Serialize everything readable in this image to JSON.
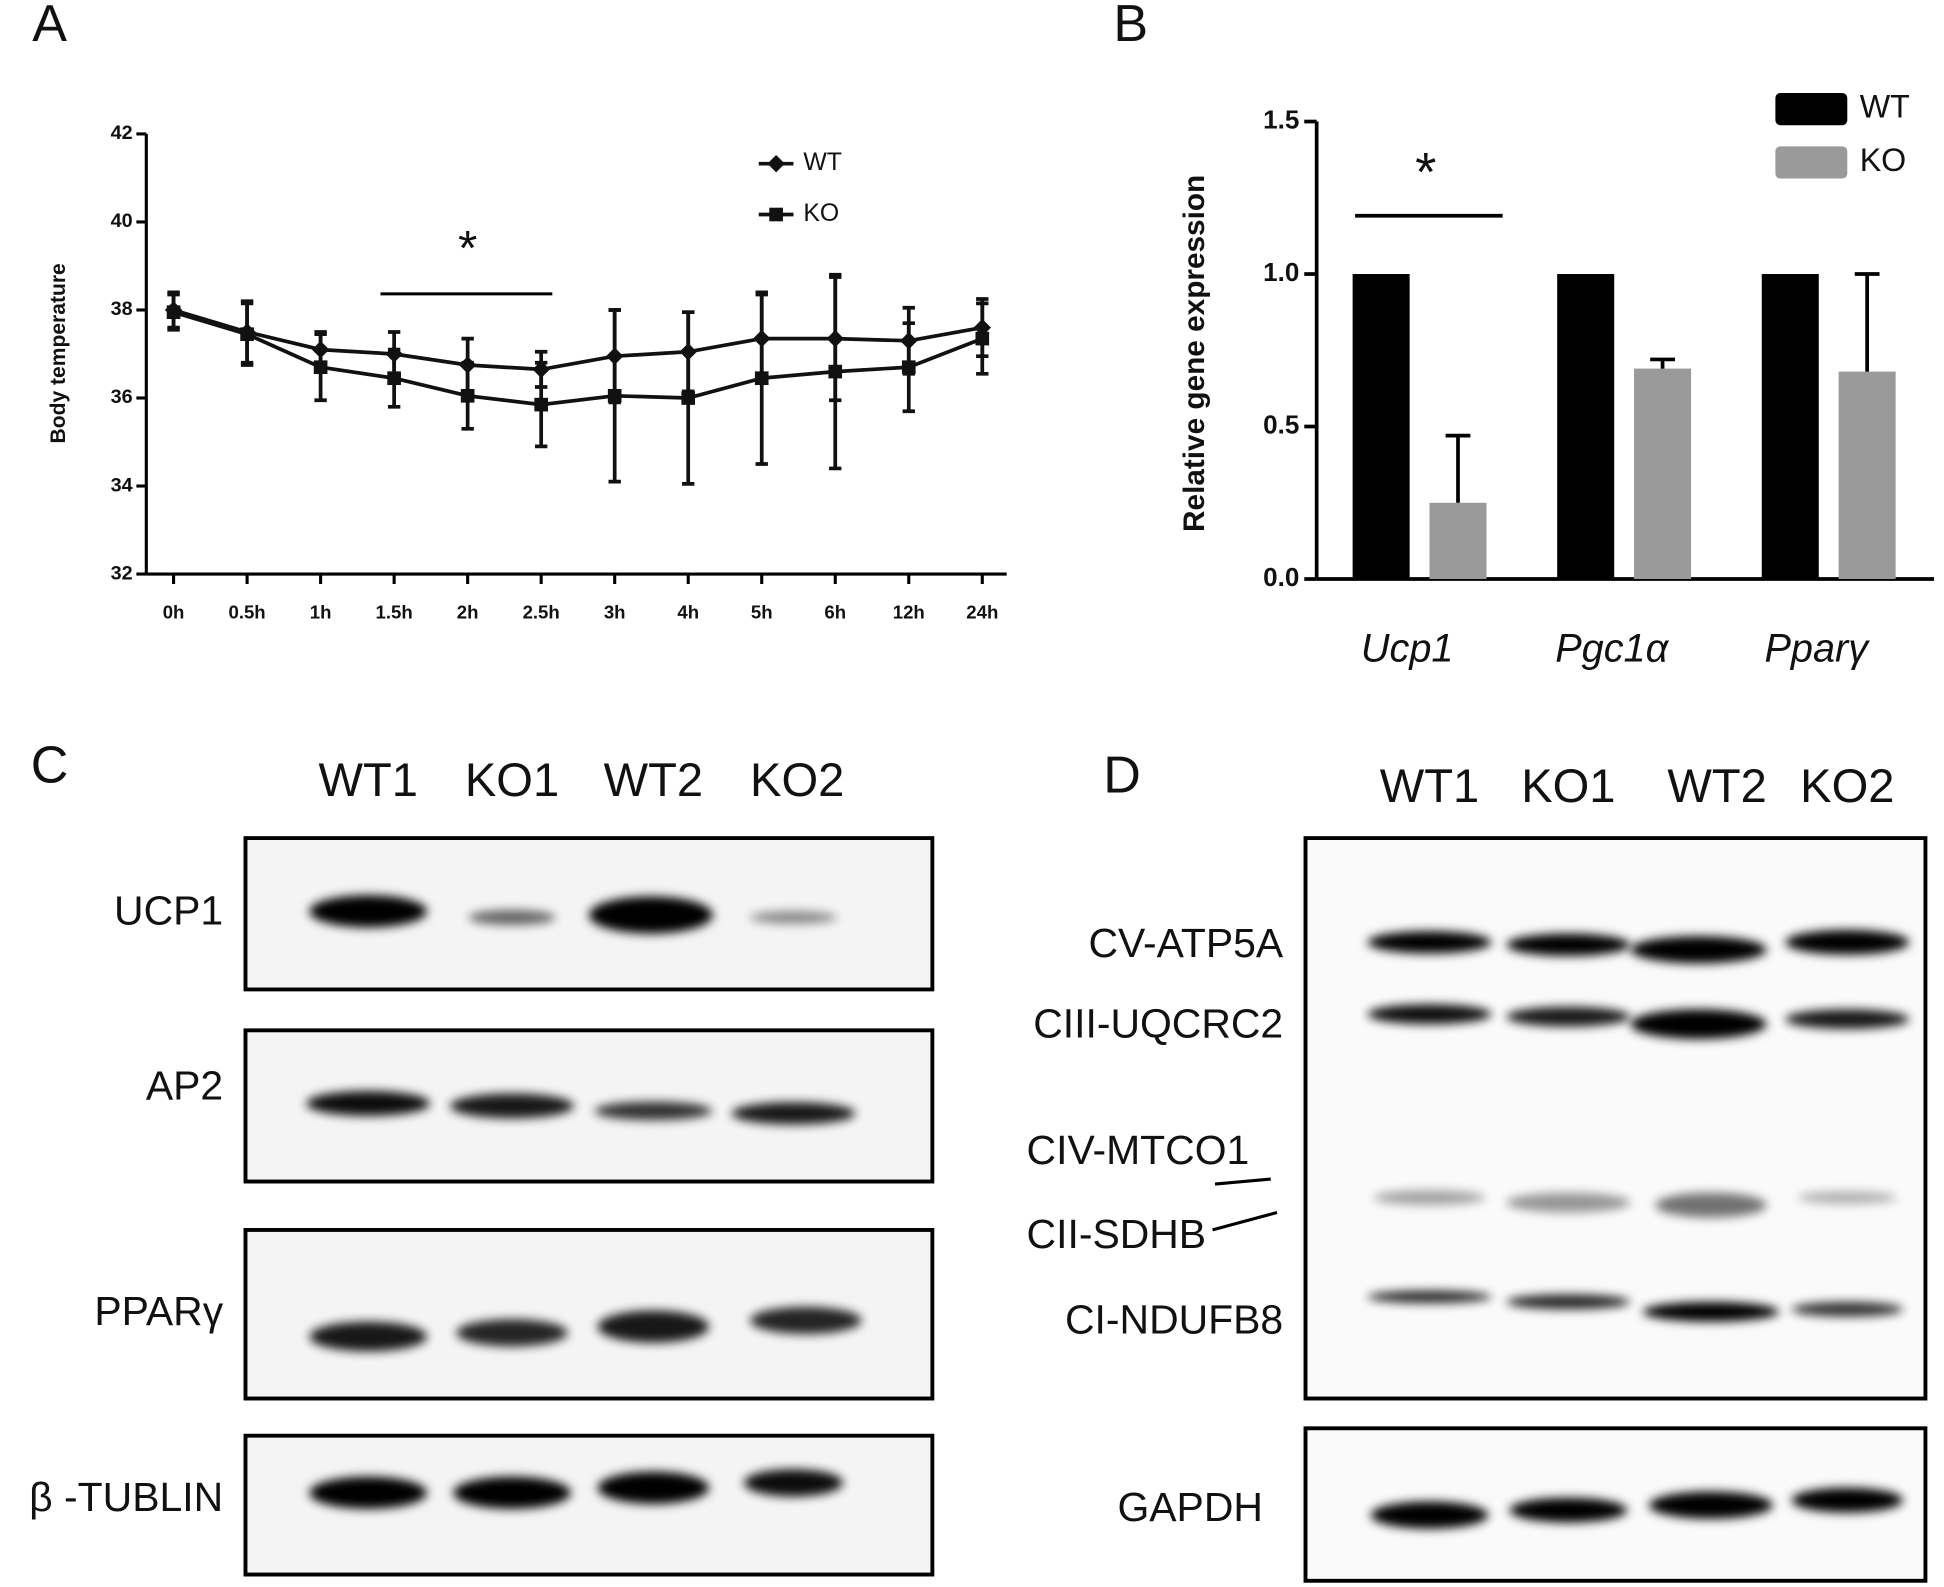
{
  "chart_data": [
    {
      "type": "line",
      "panel": "A",
      "y_label": "Body temperature",
      "categories": [
        "0h",
        "0.5h",
        "1h",
        "1.5h",
        "2h",
        "2.5h",
        "3h",
        "4h",
        "5h",
        "6h",
        "12h",
        "24h"
      ],
      "series": [
        {
          "name": "WT",
          "color": "#111111",
          "marker": "diamond",
          "values": [
            38.0,
            37.5,
            37.1,
            37.0,
            36.75,
            36.65,
            36.95,
            37.05,
            37.35,
            37.35,
            37.3,
            37.6
          ],
          "errors": [
            0.4,
            0.7,
            0.4,
            0.5,
            0.6,
            0.4,
            1.05,
            0.9,
            1.0,
            1.4,
            0.75,
            0.65
          ]
        },
        {
          "name": "KO",
          "color": "#111111",
          "marker": "square",
          "values": [
            37.95,
            37.45,
            36.7,
            36.45,
            36.05,
            35.85,
            36.05,
            36.0,
            36.45,
            36.6,
            36.7,
            37.35
          ],
          "errors": [
            0.4,
            0.7,
            0.75,
            0.65,
            0.75,
            0.95,
            1.95,
            1.95,
            1.95,
            2.2,
            1.0,
            0.8
          ]
        }
      ],
      "ylim": [
        32,
        42
      ],
      "yticks": [
        32,
        34,
        36,
        38,
        40,
        42
      ],
      "annotation": "*"
    },
    {
      "type": "bar",
      "panel": "B",
      "y_label": "Relative gene expression",
      "categories": [
        "Ucp1",
        "Pgc1α",
        "Pparγ"
      ],
      "series": [
        {
          "name": "WT",
          "color": "#000000",
          "values": [
            1,
            1,
            1
          ]
        },
        {
          "name": "KO",
          "color": "#9a9a9a",
          "values": [
            0.25,
            0.69,
            0.68
          ],
          "errors": [
            0.22,
            0.03,
            0.32
          ]
        }
      ],
      "ylim": [
        0,
        1.5
      ],
      "yticks": [
        {
          "value": 0,
          "label": "0.0"
        },
        0.5,
        {
          "value": 1,
          "label": "1.0"
        },
        1.5
      ],
      "annotation": "*"
    }
  ],
  "blots": [
    {
      "panel": "C",
      "lanes": [
        "WT1",
        "KO1",
        "WT2",
        "KO2"
      ],
      "rows": [
        "UCP1",
        "AP2",
        "PPARγ",
        "β -TUBLIN"
      ]
    },
    {
      "panel": "D",
      "lanes": [
        "WT1",
        "KO1",
        "WT2",
        "KO2"
      ],
      "rows": [
        "CV-ATP5A",
        "CIII-UQCRC2",
        "CIV-MTCO1",
        "CII-SDHB",
        "CI-NDUFB8",
        "GAPDH"
      ]
    }
  ]
}
